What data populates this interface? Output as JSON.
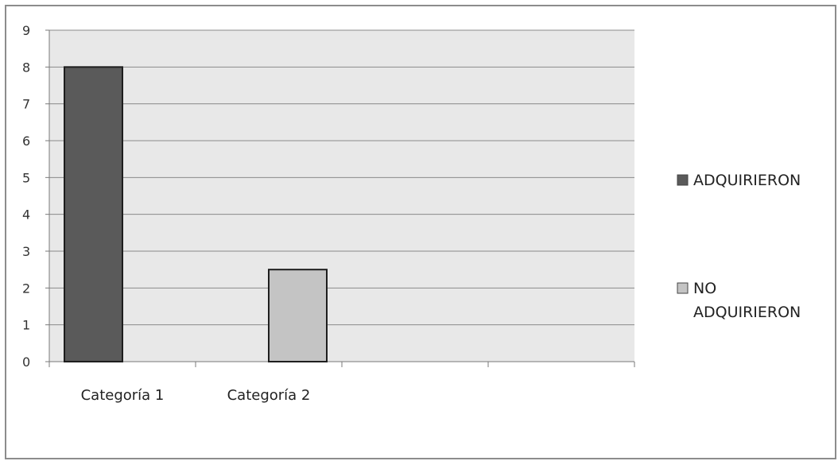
{
  "chart_data": {
    "type": "bar",
    "categories": [
      "Categoría 1",
      "Categoría 2",
      "",
      ""
    ],
    "series": [
      {
        "name": "ADQUIRIERON",
        "color": "#5a5a5a",
        "values": [
          8,
          null,
          null,
          null
        ]
      },
      {
        "name": "NO ADQUIRIERON",
        "color": "#c4c4c4",
        "values": [
          null,
          2.5,
          null,
          null
        ]
      }
    ],
    "ylim": [
      0,
      9
    ],
    "yticks": [
      "0",
      "1",
      "2",
      "3",
      "4",
      "5",
      "6",
      "7",
      "8",
      "9"
    ],
    "legend": {
      "position": "right",
      "items": [
        {
          "lines": [
            "ADQUIRIERON"
          ],
          "color": "#5a5a5a"
        },
        {
          "lines": [
            "NO",
            "ADQUIRIERON"
          ],
          "color": "#c4c4c4"
        }
      ]
    },
    "grid": true,
    "plot_background": "#e8e8e8",
    "gridline_color": "#8a8a8a"
  }
}
